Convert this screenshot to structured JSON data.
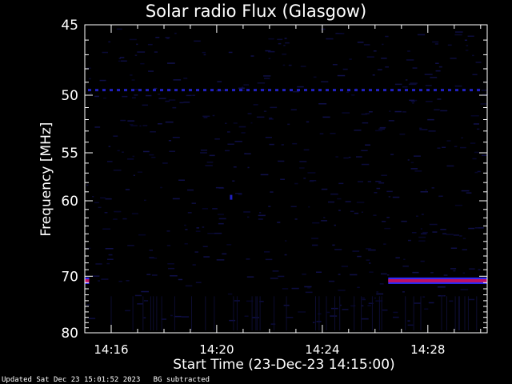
{
  "chart_data": {
    "type": "heatmap",
    "title": "Solar radio Flux (Glasgow)",
    "xlabel": "Start Time (23-Dec-23 14:15:00)",
    "ylabel": "Frequency [MHz]",
    "x_unit": "minutes of 23-Dec-23",
    "xlim": [
      "14:15:00",
      "14:30:15"
    ],
    "ylim": [
      45,
      80
    ],
    "y_scale": "reciprocal (frequency increases downward)",
    "y_ticks": [
      45,
      50,
      55,
      60,
      70,
      80
    ],
    "x_ticks": [
      "14:16",
      "14:20",
      "14:24",
      "14:28"
    ],
    "background_color": "#000000",
    "colors": {
      "faint": "#0a0a5a",
      "medium": "#2020c0",
      "strong": "#c01060",
      "blue_band": "#2a2aff"
    },
    "features": [
      {
        "name": "49.6 MHz line",
        "frequency": 49.6,
        "start": "14:15:00",
        "end": "14:30:15",
        "intensity": "medium"
      },
      {
        "name": "70.7 MHz burst start",
        "frequency": 70.7,
        "start": "14:15:00",
        "end": "14:15:10",
        "intensity": "strong"
      },
      {
        "name": "70.7 MHz band",
        "frequency": 70.7,
        "start": "14:26:30",
        "end": "14:30:15",
        "intensity": "strong"
      },
      {
        "name": "60 MHz blip",
        "frequency": 59.6,
        "start": "14:20:30",
        "end": "14:20:35",
        "intensity": "medium"
      }
    ]
  },
  "footer": {
    "updated": "Updated Sat Dec 23 15:01:52 2023",
    "note": "BG subtracted"
  }
}
